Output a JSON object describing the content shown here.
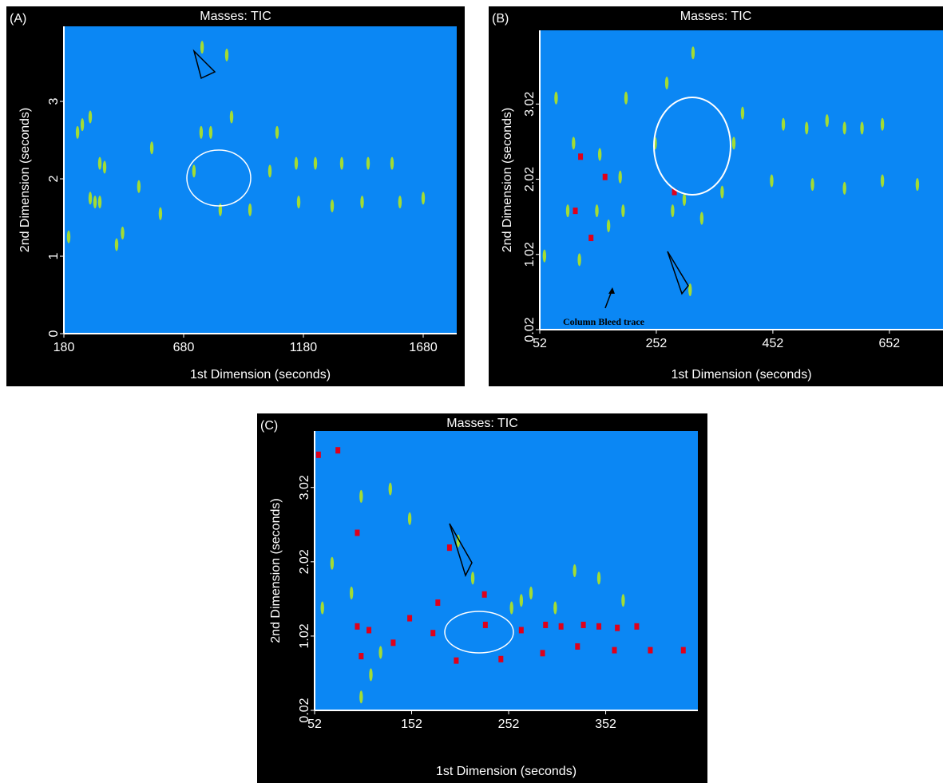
{
  "chart_data": [
    {
      "type": "scatter",
      "panel_label": "(A)",
      "title": "Masses: TIC",
      "x_label": "1st Dimension (seconds)",
      "y_label": "2nd Dimension (seconds)",
      "xlim": [
        180,
        1820
      ],
      "ylim": [
        0,
        3.97
      ],
      "xticks": [
        180,
        680,
        1180,
        1680
      ],
      "yticks": [
        0,
        1,
        2,
        3
      ],
      "background": "#0b87f4",
      "series": [
        {
          "color": "#b4e61e",
          "x": [
            237,
            290,
            257,
            330,
            350,
            290,
            310,
            330,
            425,
            400,
            493,
            547,
            583,
            723,
            753,
            793,
            833,
            880,
            957,
            1040,
            1070,
            1150,
            1160,
            1230,
            1300,
            1340,
            1425,
            1450,
            1550,
            1583,
            1680,
            757,
            860,
            200
          ],
          "values": [
            2.6,
            2.8,
            2.7,
            2.2,
            2.15,
            1.75,
            1.7,
            1.7,
            1.3,
            1.15,
            1.9,
            2.4,
            1.55,
            2.1,
            2.6,
            2.6,
            1.6,
            2.8,
            1.6,
            2.1,
            2.6,
            2.2,
            1.7,
            2.2,
            1.65,
            2.2,
            1.7,
            2.2,
            2.2,
            1.7,
            1.75,
            3.7,
            3.6,
            1.25
          ]
        }
      ]
    },
    {
      "type": "scatter",
      "panel_label": "(B)",
      "title": "Masses: TIC",
      "x_label": "1st Dimension (seconds)",
      "y_label": "2nd Dimension (seconds)",
      "annotation": "Column Bleed trace",
      "xlim": [
        52,
        744
      ],
      "ylim": [
        0.02,
        4.0
      ],
      "xticks": [
        52,
        252,
        452,
        652
      ],
      "yticks": [
        0.02,
        1.02,
        2.02,
        3.02
      ],
      "background": "#0b87f4",
      "series": [
        {
          "color": "#b4e61e",
          "x": [
            60,
            80,
            100,
            110,
            120,
            150,
            155,
            170,
            190,
            200,
            195,
            250,
            280,
            270,
            300,
            315,
            330,
            365,
            385,
            400,
            450,
            470,
            510,
            520,
            545,
            575,
            575,
            605,
            640,
            640,
            700,
            310
          ],
          "values": [
            1.0,
            3.1,
            1.6,
            2.5,
            0.95,
            1.6,
            2.35,
            1.4,
            2.05,
            3.1,
            1.6,
            2.5,
            1.6,
            3.3,
            1.75,
            3.7,
            1.5,
            1.85,
            2.5,
            2.9,
            2.0,
            2.75,
            2.7,
            1.95,
            2.8,
            2.7,
            1.9,
            2.7,
            2.0,
            2.75,
            1.95,
            0.55
          ]
        },
        {
          "color": "#e0001a",
          "x": [
            122,
            113,
            164,
            140,
            283
          ],
          "values": [
            2.32,
            1.6,
            2.05,
            1.24,
            1.85
          ]
        }
      ]
    },
    {
      "type": "scatter",
      "panel_label": "(C)",
      "title": "Masses: TIC",
      "x_label": "1st Dimension (seconds)",
      "y_label": "2nd Dimension (seconds)",
      "xlim": [
        52,
        447
      ],
      "ylim": [
        0.02,
        3.78
      ],
      "xticks": [
        52,
        152,
        252,
        352
      ],
      "yticks": [
        0.02,
        1.02,
        2.02,
        3.02
      ],
      "background": "#0b87f4",
      "series": [
        {
          "color": "#b4e61e",
          "x": [
            60,
            70,
            90,
            100,
            110,
            120,
            130,
            150,
            200,
            215,
            255,
            265,
            275,
            300,
            320,
            345,
            370,
            100
          ],
          "values": [
            1.4,
            2.0,
            1.6,
            2.9,
            0.5,
            0.8,
            3.0,
            2.6,
            2.3,
            1.8,
            1.4,
            1.5,
            1.6,
            1.4,
            1.9,
            1.8,
            1.5,
            0.2
          ]
        },
        {
          "color": "#e0001a",
          "x": [
            56,
            76,
            96,
            96,
            100,
            108,
            133,
            150,
            174,
            179,
            198,
            227,
            244,
            265,
            287,
            290,
            306,
            323,
            329,
            345,
            361,
            364,
            384,
            398,
            432,
            191,
            228
          ],
          "values": [
            3.46,
            3.52,
            2.41,
            1.15,
            0.75,
            1.1,
            0.93,
            1.26,
            1.06,
            1.47,
            0.69,
            1.58,
            0.71,
            1.1,
            0.79,
            1.17,
            1.15,
            0.88,
            1.17,
            1.15,
            0.83,
            1.13,
            1.15,
            0.83,
            0.83,
            2.21,
            1.17
          ]
        }
      ]
    }
  ]
}
